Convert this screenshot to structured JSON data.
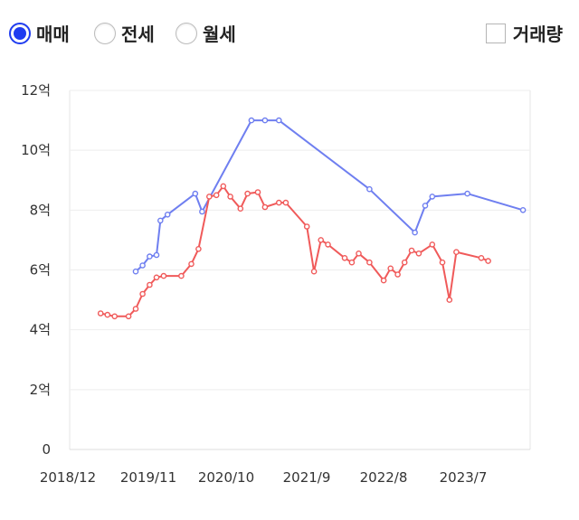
{
  "controls": {
    "radios": [
      {
        "label": "매매",
        "checked": true
      },
      {
        "label": "전세",
        "checked": false
      },
      {
        "label": "월세",
        "checked": false
      }
    ],
    "checkbox": {
      "label": "거래량",
      "checked": false
    }
  },
  "colors": {
    "primary": "#1f3cf0",
    "sale_line": "#6f7ff0",
    "rent_line": "#f05a5a"
  },
  "chart_data": {
    "type": "line",
    "title": "",
    "xlabel": "",
    "ylabel": "",
    "x_ticks": [
      "2018/12",
      "2019/11",
      "2020/10",
      "2021/9",
      "2022/8",
      "2023/7"
    ],
    "y_ticks": [
      "0",
      "2억",
      "4억",
      "6억",
      "8억",
      "10억",
      "12억"
    ],
    "ylim": [
      0,
      12
    ],
    "xlim": [
      "2018-12",
      "2024-06"
    ],
    "y_unit": "억",
    "grid": true,
    "series": [
      {
        "name": "",
        "color": "#6f7ff0",
        "points": [
          [
            "2019-09-15",
            5.95
          ],
          [
            "2019-10-15",
            6.15
          ],
          [
            "2019-11-15",
            6.45
          ],
          [
            "2019-12-15",
            6.5
          ],
          [
            "2020-01-01",
            7.65
          ],
          [
            "2020-02-01",
            7.85
          ],
          [
            "2020-06-01",
            8.55
          ],
          [
            "2020-07-01",
            7.95
          ],
          [
            "2021-02-01",
            11.0
          ],
          [
            "2021-04-01",
            11.0
          ],
          [
            "2021-06-01",
            11.0
          ],
          [
            "2022-07-01",
            8.7
          ],
          [
            "2023-01-15",
            7.25
          ],
          [
            "2023-03-01",
            8.15
          ],
          [
            "2023-04-01",
            8.45
          ],
          [
            "2023-09-01",
            8.55
          ],
          [
            "2024-05-01",
            8.0
          ]
        ]
      },
      {
        "name": "",
        "color": "#f05a5a",
        "points": [
          [
            "2019-04-15",
            4.55
          ],
          [
            "2019-05-15",
            4.5
          ],
          [
            "2019-06-15",
            4.45
          ],
          [
            "2019-08-15",
            4.45
          ],
          [
            "2019-09-15",
            4.7
          ],
          [
            "2019-10-15",
            5.2
          ],
          [
            "2019-11-15",
            5.5
          ],
          [
            "2019-12-15",
            5.75
          ],
          [
            "2020-01-15",
            5.8
          ],
          [
            "2020-04-01",
            5.8
          ],
          [
            "2020-05-15",
            6.2
          ],
          [
            "2020-06-15",
            6.7
          ],
          [
            "2020-08-01",
            8.45
          ],
          [
            "2020-09-01",
            8.5
          ],
          [
            "2020-10-01",
            8.8
          ],
          [
            "2020-11-01",
            8.45
          ],
          [
            "2020-12-15",
            8.05
          ],
          [
            "2021-01-15",
            8.55
          ],
          [
            "2021-03-01",
            8.6
          ],
          [
            "2021-04-01",
            8.1
          ],
          [
            "2021-06-01",
            8.25
          ],
          [
            "2021-07-01",
            8.25
          ],
          [
            "2021-10-01",
            7.45
          ],
          [
            "2021-11-01",
            5.95
          ],
          [
            "2021-12-01",
            7.0
          ],
          [
            "2022-01-01",
            6.85
          ],
          [
            "2022-03-15",
            6.4
          ],
          [
            "2022-04-15",
            6.25
          ],
          [
            "2022-05-15",
            6.55
          ],
          [
            "2022-07-01",
            6.25
          ],
          [
            "2022-09-01",
            5.65
          ],
          [
            "2022-10-01",
            6.05
          ],
          [
            "2022-11-01",
            5.85
          ],
          [
            "2022-12-01",
            6.25
          ],
          [
            "2023-01-01",
            6.65
          ],
          [
            "2023-02-01",
            6.55
          ],
          [
            "2023-04-01",
            6.85
          ],
          [
            "2023-05-15",
            6.25
          ],
          [
            "2023-06-15",
            5.0
          ],
          [
            "2023-07-15",
            6.6
          ],
          [
            "2023-11-01",
            6.4
          ],
          [
            "2023-12-01",
            6.3
          ]
        ]
      }
    ]
  }
}
